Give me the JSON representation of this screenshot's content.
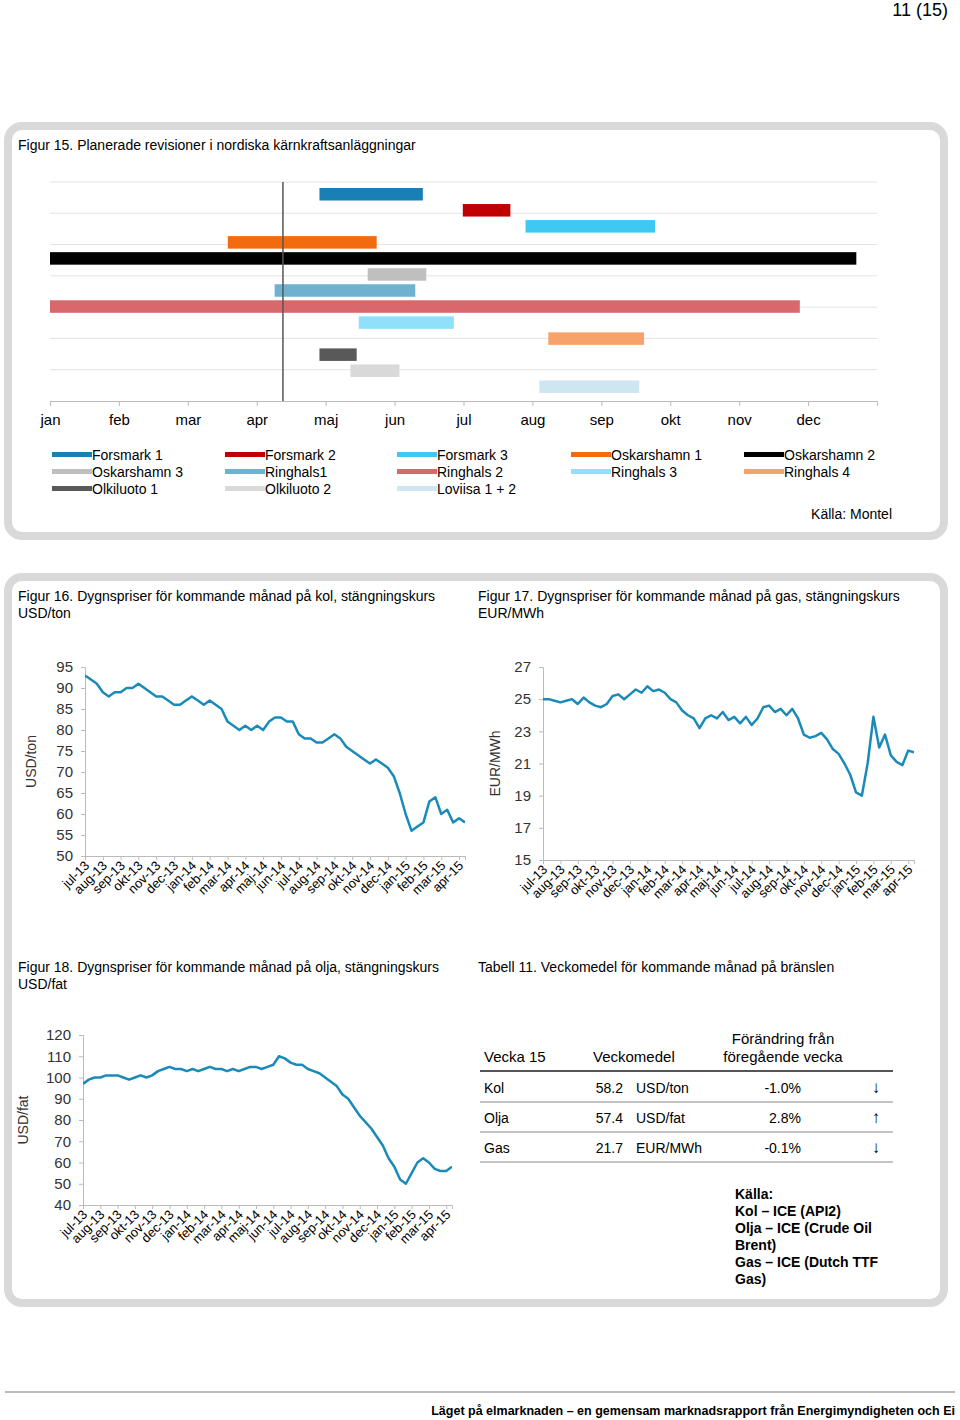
{
  "page": {
    "number": "11 (15)",
    "footer": "Läget på elmarknaden – en gemensam marknadsrapport från Energimyndigheten och Ei"
  },
  "chart_data": [
    {
      "type": "gantt",
      "title": "Figur 15. Planerade revisioner i nordiska kärnkraftsanläggningar",
      "source": "Källa: Montel",
      "xlim": [
        0,
        12
      ],
      "xticks": [
        {
          "value": 0,
          "label": "jan"
        },
        {
          "value": 1,
          "label": "feb"
        },
        {
          "value": 2,
          "label": "mar"
        },
        {
          "value": 3,
          "label": "apr"
        },
        {
          "value": 4,
          "label": "maj"
        },
        {
          "value": 5,
          "label": "jun"
        },
        {
          "value": 6,
          "label": "jul"
        },
        {
          "value": 7,
          "label": "aug"
        },
        {
          "value": 8,
          "label": "sep"
        },
        {
          "value": 9,
          "label": "okt"
        },
        {
          "value": 10,
          "label": "nov"
        },
        {
          "value": 11,
          "label": "dec"
        }
      ],
      "today": 3.38,
      "grid": true,
      "legend": "bottom",
      "series": [
        {
          "name": "Forsmark 1",
          "color": "#1a7fb5",
          "start": 3.91,
          "end": 5.41
        },
        {
          "name": "Forsmark 2",
          "color": "#c00000",
          "start": 5.99,
          "end": 6.68
        },
        {
          "name": "Forsmark 3",
          "color": "#3fc8f4",
          "start": 6.9,
          "end": 8.78
        },
        {
          "name": "Oskarshamn 1",
          "color": "#f26b0f",
          "start": 2.58,
          "end": 4.74
        },
        {
          "name": "Oskarshamn 2",
          "color": "#000000",
          "start": 0,
          "end": 11.7
        },
        {
          "name": "Oskarshamn 3",
          "color": "#bfbfbf",
          "start": 4.61,
          "end": 5.46
        },
        {
          "name": "Ringhals1",
          "color": "#6eb2cf",
          "start": 3.26,
          "end": 5.3
        },
        {
          "name": "Ringhals 2",
          "color": "#d9686c",
          "start": 0,
          "end": 10.88
        },
        {
          "name": "Ringhals 3",
          "color": "#8fe1fb",
          "start": 4.48,
          "end": 5.86
        },
        {
          "name": "Ringhals 4",
          "color": "#f7a26a",
          "start": 7.23,
          "end": 8.62
        },
        {
          "name": "Olkiluoto 1",
          "color": "#595959",
          "start": 3.91,
          "end": 4.45
        },
        {
          "name": "Olkiluoto 2",
          "color": "#d9d9d9",
          "start": 4.36,
          "end": 5.07
        },
        {
          "name": "Loviisa 1 + 2",
          "color": "#cde6f2",
          "start": 7.1,
          "end": 8.55
        }
      ]
    },
    {
      "type": "line",
      "title": "Figur 16. Dygnspriser för kommande månad på kol, stängningskurs",
      "subtitle": "USD/ton",
      "y_label": "USD/ton",
      "color": "#1a8bb9",
      "grid": false,
      "ylim": [
        50,
        95
      ],
      "yticks": [
        50,
        55,
        60,
        65,
        70,
        75,
        80,
        85,
        90,
        95
      ],
      "categories": [
        "jul-13",
        null,
        null,
        "aug-13",
        null,
        null,
        "sep-13",
        null,
        null,
        "okt-13",
        null,
        null,
        "nov-13",
        null,
        null,
        "dec-13",
        null,
        null,
        "jan-14",
        null,
        null,
        "feb-14",
        null,
        null,
        "mar-14",
        null,
        null,
        "apr-14",
        null,
        null,
        "maj-14",
        null,
        null,
        "jun-14",
        null,
        null,
        "jul-14",
        null,
        null,
        "aug-14",
        null,
        null,
        "sep-14",
        null,
        null,
        "okt-14",
        null,
        null,
        "nov-14",
        null,
        null,
        "dec-14",
        null,
        null,
        "jan-15",
        null,
        null,
        "feb-15",
        null,
        null,
        "mar-15",
        null,
        null,
        "apr-15",
        null
      ],
      "values": [
        93,
        92,
        91,
        89,
        88,
        89,
        89,
        90,
        90,
        91,
        90,
        89,
        88,
        88,
        87,
        86,
        86,
        87,
        88,
        87,
        86,
        87,
        86,
        85,
        82,
        81,
        80,
        81,
        80,
        81,
        80,
        82,
        83,
        83,
        82,
        82,
        79,
        78,
        78,
        77,
        77,
        78,
        79,
        78,
        76,
        75,
        74,
        73,
        72,
        73,
        72,
        71,
        69,
        65,
        60,
        56,
        57,
        58,
        63,
        64,
        60,
        61,
        58,
        59,
        58
      ]
    },
    {
      "type": "line",
      "title": "Figur 17. Dygnspriser för kommande månad på gas, stängningskurs",
      "subtitle": "EUR/MWh",
      "y_label": "EUR/MWh",
      "color": "#1a8bb9",
      "grid": false,
      "ylim": [
        15,
        27
      ],
      "yticks": [
        15,
        17,
        19,
        21,
        23,
        25,
        27
      ],
      "categories": [
        "jul-13",
        null,
        null,
        "aug-13",
        null,
        null,
        "sep-13",
        null,
        null,
        "okt-13",
        null,
        null,
        "nov-13",
        null,
        null,
        "dec-13",
        null,
        null,
        "jan-14",
        null,
        null,
        "feb-14",
        null,
        null,
        "mar-14",
        null,
        null,
        "apr-14",
        null,
        null,
        "maj-14",
        null,
        null,
        "jun-14",
        null,
        null,
        "jul-14",
        null,
        null,
        "aug-14",
        null,
        null,
        "sep-14",
        null,
        null,
        "okt-14",
        null,
        null,
        "nov-14",
        null,
        null,
        "dec-14",
        null,
        null,
        "jan-15",
        null,
        null,
        "feb-15",
        null,
        null,
        "mar-15",
        null,
        null,
        "apr-15",
        null
      ],
      "values": [
        25.0,
        25.0,
        24.9,
        24.8,
        24.9,
        25.0,
        24.7,
        25.1,
        24.8,
        24.6,
        24.5,
        24.7,
        25.2,
        25.3,
        25.0,
        25.3,
        25.6,
        25.4,
        25.8,
        25.5,
        25.6,
        25.4,
        25.0,
        24.8,
        24.3,
        24.0,
        23.8,
        23.2,
        23.8,
        24.0,
        23.8,
        24.2,
        23.7,
        23.9,
        23.5,
        23.9,
        23.4,
        23.8,
        24.5,
        24.6,
        24.2,
        24.4,
        24.0,
        24.4,
        23.8,
        22.8,
        22.6,
        22.7,
        22.9,
        22.5,
        21.9,
        21.6,
        21.0,
        20.3,
        19.2,
        19.0,
        21.0,
        23.9,
        22.0,
        22.8,
        21.5,
        21.1,
        20.9,
        21.8,
        21.7
      ]
    },
    {
      "type": "line",
      "title": "Figur 18. Dygnspriser för kommande månad på olja, stängningskurs",
      "subtitle": "USD/fat",
      "y_label": "USD/fat",
      "color": "#1a8bb9",
      "grid": false,
      "ylim": [
        40,
        120
      ],
      "yticks": [
        40,
        50,
        60,
        70,
        80,
        90,
        100,
        110,
        120
      ],
      "categories": [
        "jul-13",
        null,
        null,
        "aug-13",
        null,
        null,
        "sep-13",
        null,
        null,
        "okt-13",
        null,
        null,
        "nov-13",
        null,
        null,
        "dec-13",
        null,
        null,
        "jan-14",
        null,
        null,
        "feb-14",
        null,
        null,
        "mar-14",
        null,
        null,
        "apr-14",
        null,
        null,
        "maj-14",
        null,
        null,
        "jun-14",
        null,
        null,
        "jul-14",
        null,
        null,
        "aug-14",
        null,
        null,
        "sep-14",
        null,
        null,
        "okt-14",
        null,
        null,
        "nov-14",
        null,
        null,
        "dec-14",
        null,
        null,
        "jan-15",
        null,
        null,
        "feb-15",
        null,
        null,
        "mar-15",
        null,
        null,
        "apr-15",
        null
      ],
      "values": [
        97,
        99,
        100,
        100,
        101,
        101,
        101,
        100,
        99,
        100,
        101,
        100,
        101,
        103,
        104,
        105,
        104,
        104,
        103,
        104,
        103,
        104,
        105,
        104,
        104,
        103,
        104,
        103,
        104,
        105,
        105,
        104,
        105,
        106,
        110,
        109,
        107,
        106,
        106,
        104,
        103,
        102,
        100,
        98,
        96,
        92,
        90,
        86,
        82,
        79,
        76,
        72,
        68,
        62,
        58,
        52,
        50,
        55,
        60,
        62,
        60,
        57,
        56,
        56,
        58
      ]
    }
  ],
  "table": {
    "title": "Tabell 11. Veckomedel för kommande månad på bränslen",
    "header": {
      "week": "Vecka 15",
      "mean": "Veckomedel",
      "change": [
        "Förändring från",
        "föregående vecka"
      ]
    },
    "rows": [
      [
        "Kol",
        "58.2",
        "USD/ton",
        "-1.0%",
        "↓"
      ],
      [
        "Olja",
        "57.4",
        "USD/fat",
        "2.8%",
        "↑"
      ],
      [
        "Gas",
        "21.7",
        "EUR/MWh",
        "-0.1%",
        "↓"
      ]
    ],
    "source": [
      "Källa:",
      "Kol – ICE (API2)",
      "Olja – ICE (Crude Oil",
      "Brent)",
      "Gas – ICE (Dutch TTF",
      "Gas)"
    ]
  }
}
